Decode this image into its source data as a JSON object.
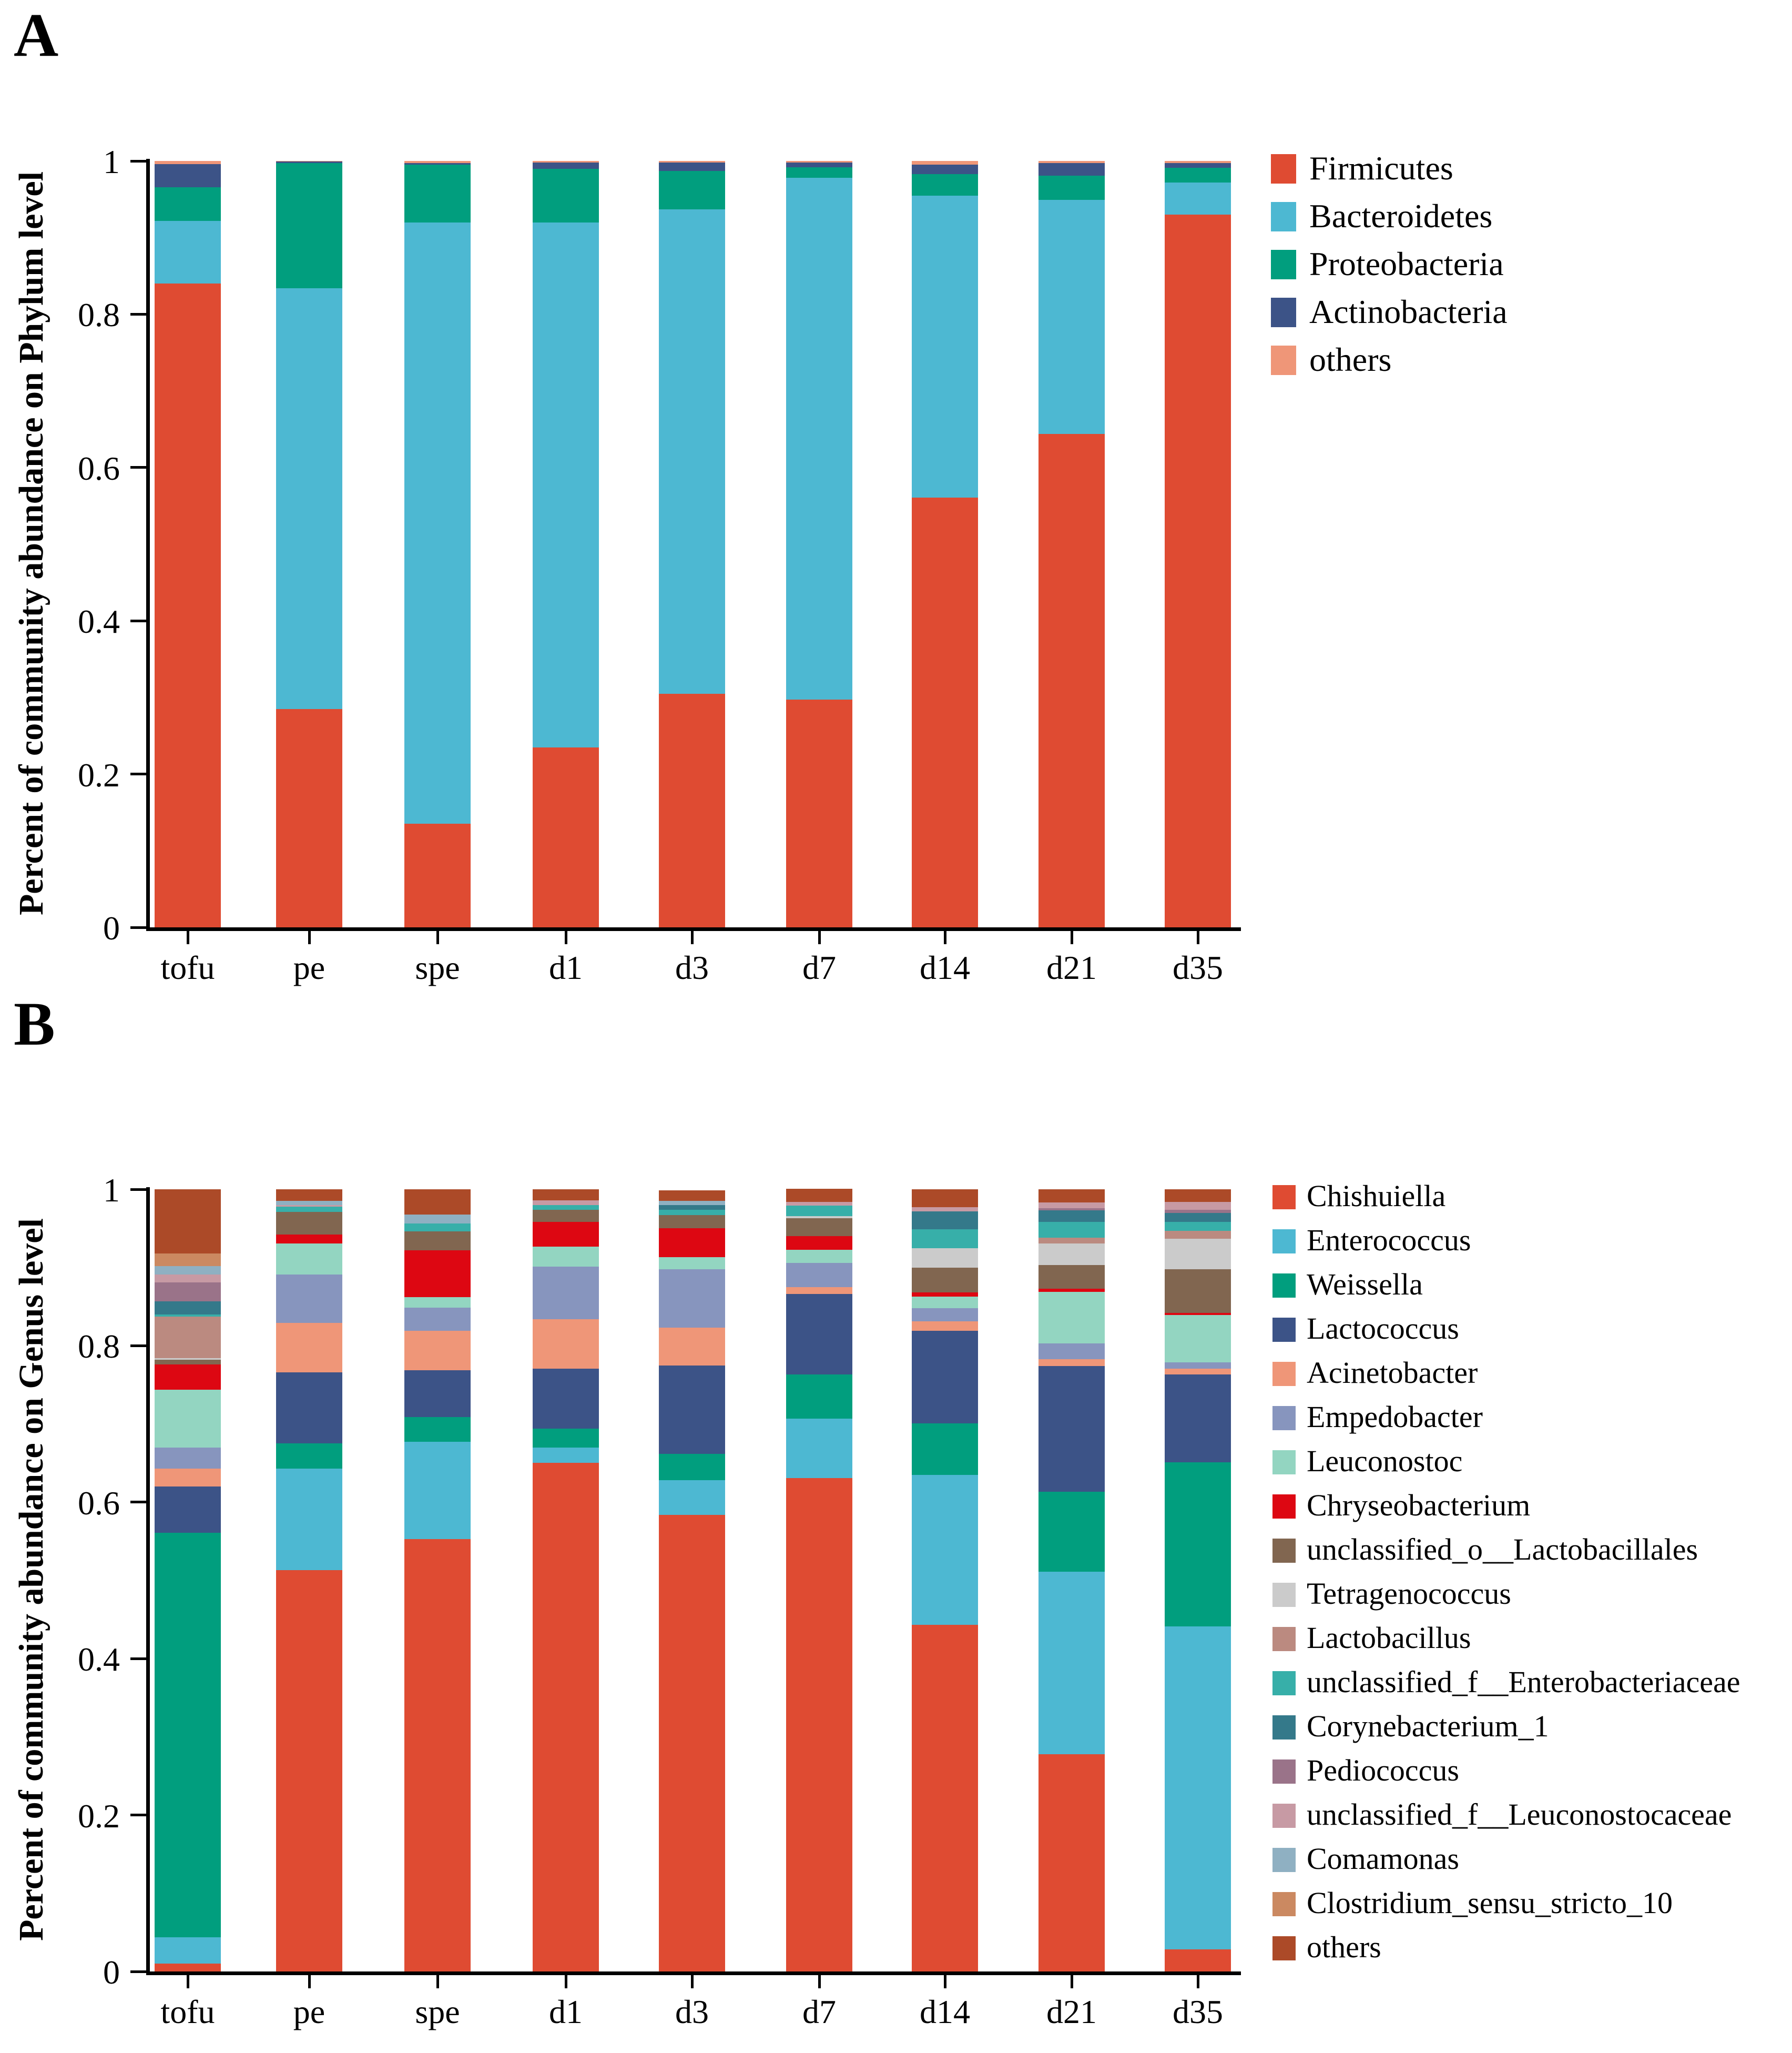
{
  "figure": {
    "panel_a_letter": "A",
    "panel_b_letter": "B",
    "background": "#ffffff",
    "axis_color": "#000000"
  },
  "chart_data": [
    {
      "type": "bar",
      "stacked": true,
      "panel_letter": "A",
      "ylabel": "Percent of community abundance on Phylum level",
      "xlabel": "",
      "ylim": [
        0,
        1
      ],
      "yticks": [
        "1",
        "0.8",
        "0.6",
        "0.4",
        "0.2",
        "0"
      ],
      "ytick_values": [
        1,
        0.8,
        0.6,
        0.4,
        0.2,
        0
      ],
      "grid": false,
      "legend_position": "right",
      "categories": [
        "tofu",
        "pe",
        "spe",
        "d1",
        "d3",
        "d7",
        "d14",
        "d21",
        "d35"
      ],
      "series": [
        {
          "name": "Firmicutes",
          "color": "#DF4B32",
          "values": [
            0.84,
            0.285,
            0.135,
            0.235,
            0.305,
            0.297,
            0.561,
            0.644,
            0.93
          ]
        },
        {
          "name": "Bacteroidetes",
          "color": "#4DB8D2",
          "values": [
            0.082,
            0.549,
            0.785,
            0.685,
            0.632,
            0.681,
            0.394,
            0.305,
            0.042
          ]
        },
        {
          "name": "Proteobacteria",
          "color": "#019E7E",
          "values": [
            0.044,
            0.163,
            0.075,
            0.07,
            0.05,
            0.014,
            0.028,
            0.032,
            0.019
          ]
        },
        {
          "name": "Actinobacteria",
          "color": "#3C5387",
          "values": [
            0.03,
            0.002,
            0.002,
            0.008,
            0.011,
            0.006,
            0.012,
            0.016,
            0.006
          ]
        },
        {
          "name": "others",
          "color": "#EF9678",
          "values": [
            0.004,
            0.001,
            0.003,
            0.002,
            0.002,
            0.002,
            0.005,
            0.003,
            0.003
          ]
        }
      ]
    },
    {
      "type": "bar",
      "stacked": true,
      "panel_letter": "B",
      "ylabel": "Percent of community abundance on Genus level",
      "xlabel": "",
      "ylim": [
        0,
        1
      ],
      "yticks": [
        "1",
        "0.8",
        "0.6",
        "0.4",
        "0.2",
        "0"
      ],
      "ytick_values": [
        1,
        0.8,
        0.6,
        0.4,
        0.2,
        0
      ],
      "grid": false,
      "legend_position": "right",
      "categories": [
        "tofu",
        "pe",
        "spe",
        "d1",
        "d3",
        "d7",
        "d14",
        "d21",
        "d35"
      ],
      "series": [
        {
          "name": "Chishuiella",
          "color": "#DF4B32",
          "values": [
            0.01,
            0.513,
            0.553,
            0.65,
            0.584,
            0.631,
            0.443,
            0.278,
            0.028
          ]
        },
        {
          "name": "Enterococcus",
          "color": "#4DB8D2",
          "values": [
            0.034,
            0.13,
            0.124,
            0.02,
            0.044,
            0.076,
            0.192,
            0.233,
            0.413
          ]
        },
        {
          "name": "Weissella",
          "color": "#019E7E",
          "values": [
            0.517,
            0.032,
            0.032,
            0.024,
            0.034,
            0.056,
            0.066,
            0.102,
            0.21
          ]
        },
        {
          "name": "Lactococcus",
          "color": "#3C5387",
          "values": [
            0.059,
            0.091,
            0.06,
            0.077,
            0.113,
            0.103,
            0.118,
            0.161,
            0.112
          ]
        },
        {
          "name": "Acinetobacter",
          "color": "#EF9678",
          "values": [
            0.023,
            0.063,
            0.05,
            0.063,
            0.048,
            0.009,
            0.012,
            0.009,
            0.008
          ]
        },
        {
          "name": "Empedobacter",
          "color": "#8795BE",
          "values": [
            0.027,
            0.062,
            0.03,
            0.067,
            0.075,
            0.031,
            0.017,
            0.02,
            0.008
          ]
        },
        {
          "name": "Leuconostoc",
          "color": "#93D5C1",
          "values": [
            0.074,
            0.04,
            0.013,
            0.026,
            0.015,
            0.017,
            0.015,
            0.066,
            0.06
          ]
        },
        {
          "name": "Chryseobacterium",
          "color": "#DD0712",
          "values": [
            0.032,
            0.011,
            0.06,
            0.031,
            0.037,
            0.017,
            0.005,
            0.004,
            0.003
          ]
        },
        {
          "name": "unclassified_o__Lactobacillales",
          "color": "#816650",
          "values": [
            0.006,
            0.029,
            0.024,
            0.016,
            0.017,
            0.023,
            0.032,
            0.03,
            0.056
          ]
        },
        {
          "name": "Tetragenococcus",
          "color": "#CBCBCB",
          "values": [
            0.002,
            0.0,
            0.0,
            0.0,
            0.0,
            0.003,
            0.025,
            0.028,
            0.039
          ]
        },
        {
          "name": "Lactobacillus",
          "color": "#BB8A80",
          "values": [
            0.053,
            0.0,
            0.0,
            0.0,
            0.0,
            0.0,
            0.0,
            0.007,
            0.01
          ]
        },
        {
          "name": "unclassified_f__Enterobacteriaceae",
          "color": "#37AFA9",
          "values": [
            0.003,
            0.007,
            0.01,
            0.006,
            0.007,
            0.013,
            0.024,
            0.02,
            0.011
          ]
        },
        {
          "name": "Corynebacterium_1",
          "color": "#34798A",
          "values": [
            0.017,
            0.0,
            0.0,
            0.0,
            0.006,
            0.0,
            0.023,
            0.015,
            0.012
          ]
        },
        {
          "name": "Pediococcus",
          "color": "#9A7389",
          "values": [
            0.024,
            0.0,
            0.0,
            0.0,
            0.0,
            0.0,
            0.0,
            0.003,
            0.004
          ]
        },
        {
          "name": "unclassified_f__Leuconostocaceae",
          "color": "#C79AA4",
          "values": [
            0.01,
            0.002,
            0.0,
            0.006,
            0.0,
            0.005,
            0.005,
            0.007,
            0.01
          ]
        },
        {
          "name": "Comamonas",
          "color": "#8FB0C2",
          "values": [
            0.011,
            0.005,
            0.012,
            0.0,
            0.005,
            0.0,
            0.0,
            0.0,
            0.0
          ]
        },
        {
          "name": "Clostridium_sensu_stricto_10",
          "color": "#CB8961",
          "values": [
            0.016,
            0.0,
            0.0,
            0.0,
            0.0,
            0.0,
            0.0,
            0.0,
            0.0
          ]
        },
        {
          "name": "others",
          "color": "#AC4A28",
          "values": [
            0.082,
            0.015,
            0.032,
            0.014,
            0.014,
            0.017,
            0.023,
            0.017,
            0.016
          ]
        }
      ]
    }
  ]
}
